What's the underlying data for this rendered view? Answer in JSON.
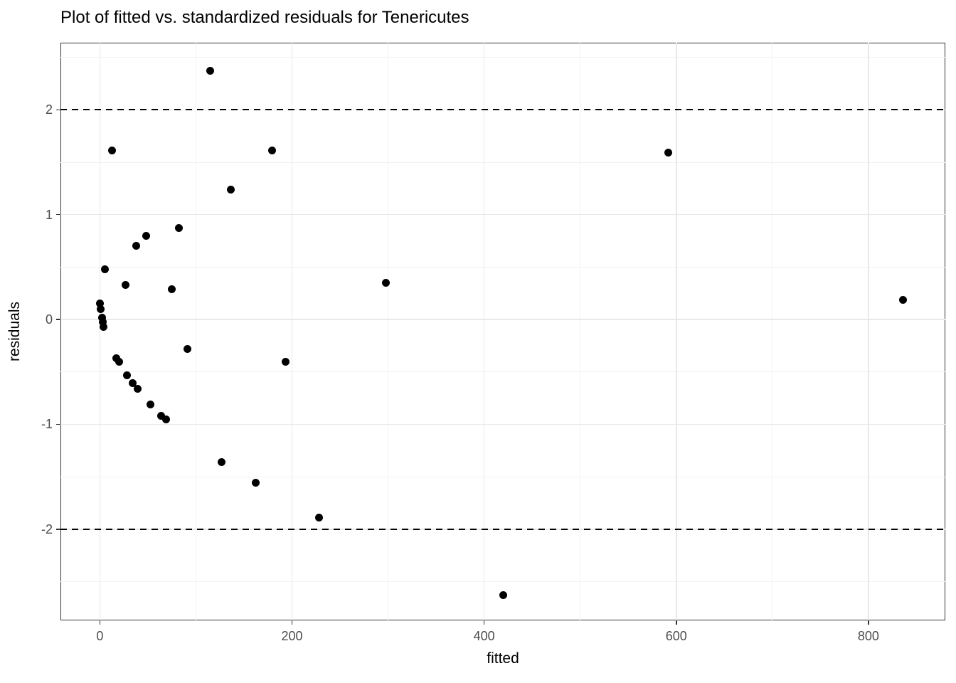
{
  "chart_data": {
    "type": "scatter",
    "title": "Plot of fitted vs. standardized residuals for Tenericutes",
    "xlabel": "fitted",
    "ylabel": "residuals",
    "xlim": [
      -41,
      880
    ],
    "ylim": [
      -2.87,
      2.64
    ],
    "x_ticks": [
      0,
      200,
      400,
      600,
      800
    ],
    "y_ticks": [
      -2,
      -1,
      0,
      1,
      2
    ],
    "x_minor_gridlines": [
      100,
      300,
      500,
      700
    ],
    "y_minor_gridlines": [
      -2.5,
      -1.5,
      -0.5,
      0.5,
      1.5,
      2.5
    ],
    "dashed_hlines": [
      2,
      -2
    ],
    "grid": true,
    "legend": "none",
    "point_color": "#000000",
    "points": [
      [
        115,
        2.37
      ],
      [
        13,
        1.61
      ],
      [
        179,
        1.61
      ],
      [
        592,
        1.59
      ],
      [
        136,
        1.24
      ],
      [
        82,
        0.87
      ],
      [
        48,
        0.8
      ],
      [
        38,
        0.7
      ],
      [
        5,
        0.48
      ],
      [
        298,
        0.35
      ],
      [
        27,
        0.33
      ],
      [
        75,
        0.29
      ],
      [
        0,
        0.15
      ],
      [
        1,
        0.1
      ],
      [
        2,
        0.02
      ],
      [
        3,
        -0.02
      ],
      [
        4,
        -0.07
      ],
      [
        91,
        -0.28
      ],
      [
        17,
        -0.37
      ],
      [
        20,
        -0.4
      ],
      [
        193,
        -0.4
      ],
      [
        28,
        -0.53
      ],
      [
        34,
        -0.61
      ],
      [
        39,
        -0.66
      ],
      [
        53,
        -0.81
      ],
      [
        64,
        -0.92
      ],
      [
        69,
        -0.95
      ],
      [
        127,
        -1.36
      ],
      [
        162,
        -1.56
      ],
      [
        228,
        -1.89
      ],
      [
        420,
        -2.63
      ],
      [
        836,
        0.19
      ]
    ]
  },
  "colors": {
    "point": "#000000",
    "grid_major": "#e8e8e8",
    "grid_minor": "#f2f2f2",
    "panel_border": "#333333",
    "tick_label": "#4d4d4d",
    "dashed_line": "#000000",
    "background": "#ffffff"
  }
}
